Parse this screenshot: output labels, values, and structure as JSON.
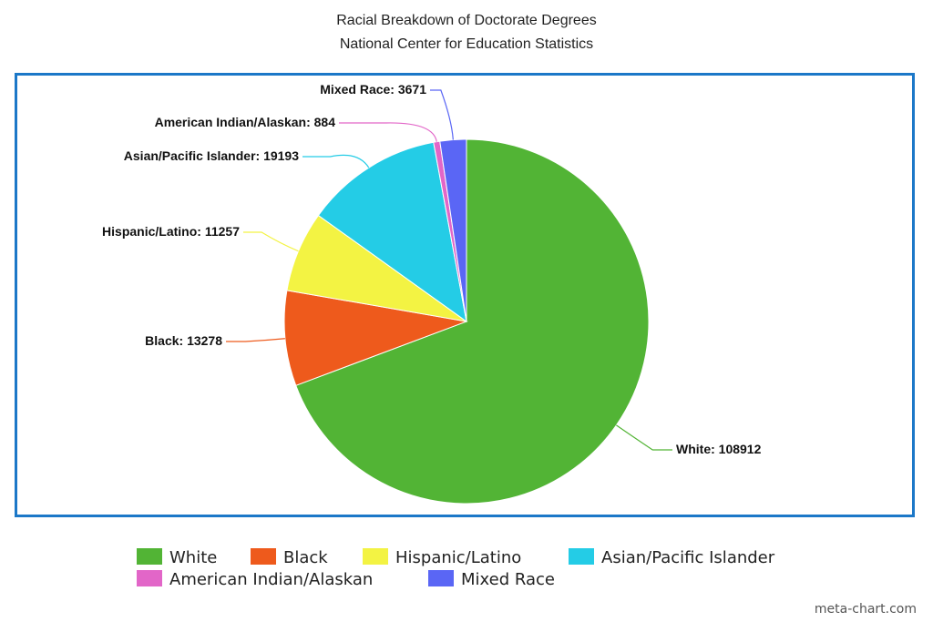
{
  "chart_data": {
    "type": "pie",
    "title": "Racial Breakdown of Doctorate Degrees",
    "subtitle": "National Center for Education Statistics",
    "categories": [
      "White",
      "Black",
      "Hispanic/Latino",
      "Asian/Pacific Islander",
      "American Indian/Alaskan",
      "Mixed Race"
    ],
    "values": [
      108912,
      13278,
      11257,
      19193,
      884,
      3671
    ],
    "colors": [
      "#52b435",
      "#ee5a1c",
      "#f3f343",
      "#24cce6",
      "#e266c8",
      "#5a66f5"
    ],
    "data_labels": [
      "White: 108912",
      "Black: 13278",
      "Hispanic/Latino: 11257",
      "Asian/Pacific Islander: 19193",
      "American Indian/Alaskan: 884",
      "Mixed Race: 3671"
    ],
    "legend_position": "bottom",
    "start_angle": "12 o'clock",
    "direction": "clockwise"
  },
  "watermark": "meta-chart.com",
  "frame_color": "#1c78c8"
}
